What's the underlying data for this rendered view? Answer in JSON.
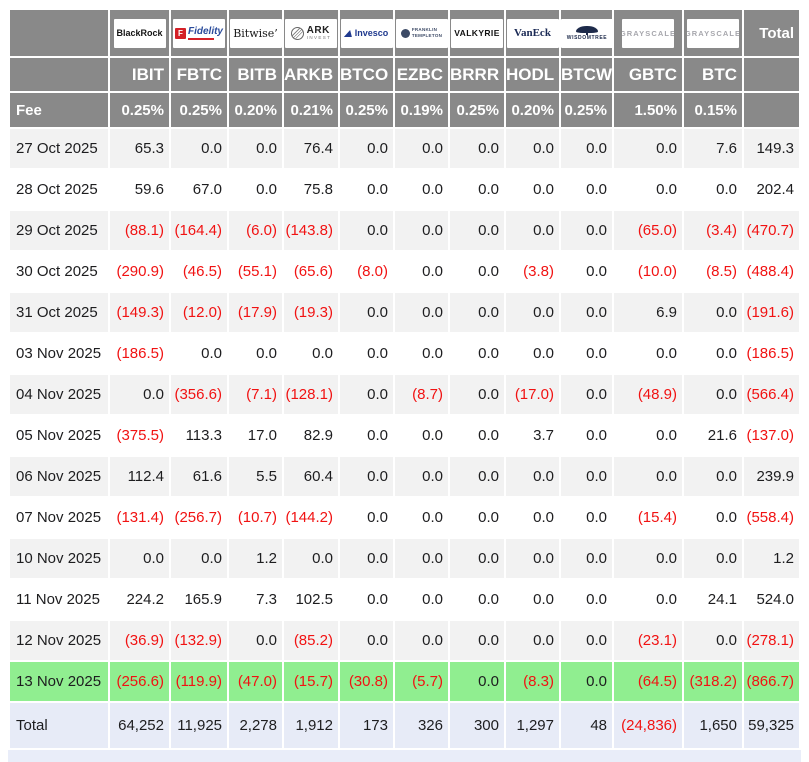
{
  "table": {
    "fee_label": "Fee",
    "total_header": "Total",
    "total_row_label": "Total",
    "columns": [
      {
        "brand": "BlackRock",
        "ticker": "IBIT",
        "fee": "0.25%",
        "logo": {
          "kind": "blackrock",
          "main": "BlackRock"
        }
      },
      {
        "brand": "Fidelity",
        "ticker": "FBTC",
        "fee": "0.25%",
        "logo": {
          "kind": "fidelity",
          "main": "Fidelity",
          "icon": "F"
        }
      },
      {
        "brand": "Bitwise",
        "ticker": "BITB",
        "fee": "0.20%",
        "logo": {
          "kind": "bitwise",
          "main": "Bitwise’"
        }
      },
      {
        "brand": "ARK Invest",
        "ticker": "ARKB",
        "fee": "0.21%",
        "logo": {
          "kind": "ark",
          "main": "ARK",
          "sub": "INVEST"
        }
      },
      {
        "brand": "Invesco",
        "ticker": "BTCO",
        "fee": "0.25%",
        "logo": {
          "kind": "invesco",
          "main": "Invesco"
        }
      },
      {
        "brand": "Franklin Templeton",
        "ticker": "EZBC",
        "fee": "0.19%",
        "logo": {
          "kind": "franklin",
          "main": "FRANKLIN",
          "sub": "TEMPLETON"
        }
      },
      {
        "brand": "Valkyrie",
        "ticker": "BRRR",
        "fee": "0.25%",
        "logo": {
          "kind": "valkyrie",
          "main": "VALKYRIE"
        }
      },
      {
        "brand": "VanEck",
        "ticker": "HODL",
        "fee": "0.20%",
        "logo": {
          "kind": "vaneck",
          "main": "VanEck"
        }
      },
      {
        "brand": "WisdomTree",
        "ticker": "BTCW",
        "fee": "0.25%",
        "logo": {
          "kind": "wisdomtree",
          "main": "WISDOMTREE"
        }
      },
      {
        "brand": "Grayscale",
        "ticker": "GBTC",
        "fee": "1.50%",
        "logo": {
          "kind": "grayscale",
          "main": "GRAYSCALE"
        }
      },
      {
        "brand": "Grayscale",
        "ticker": "BTC",
        "fee": "0.15%",
        "logo": {
          "kind": "grayscale",
          "main": "GRAYSCALE"
        }
      }
    ],
    "rows": [
      {
        "date": "27 Oct 2025",
        "values": [
          "65.3",
          "0.0",
          "0.0",
          "76.4",
          "0.0",
          "0.0",
          "0.0",
          "0.0",
          "0.0",
          "0.0",
          "7.6"
        ],
        "total": "149.3",
        "highlight": false
      },
      {
        "date": "28 Oct 2025",
        "values": [
          "59.6",
          "67.0",
          "0.0",
          "75.8",
          "0.0",
          "0.0",
          "0.0",
          "0.0",
          "0.0",
          "0.0",
          "0.0"
        ],
        "total": "202.4",
        "highlight": false
      },
      {
        "date": "29 Oct 2025",
        "values": [
          "(88.1)",
          "(164.4)",
          "(6.0)",
          "(143.8)",
          "0.0",
          "0.0",
          "0.0",
          "0.0",
          "0.0",
          "(65.0)",
          "(3.4)"
        ],
        "total": "(470.7)",
        "highlight": false
      },
      {
        "date": "30 Oct 2025",
        "values": [
          "(290.9)",
          "(46.5)",
          "(55.1)",
          "(65.6)",
          "(8.0)",
          "0.0",
          "0.0",
          "(3.8)",
          "0.0",
          "(10.0)",
          "(8.5)"
        ],
        "total": "(488.4)",
        "highlight": false
      },
      {
        "date": "31 Oct 2025",
        "values": [
          "(149.3)",
          "(12.0)",
          "(17.9)",
          "(19.3)",
          "0.0",
          "0.0",
          "0.0",
          "0.0",
          "0.0",
          "6.9",
          "0.0"
        ],
        "total": "(191.6)",
        "highlight": false
      },
      {
        "date": "03 Nov 2025",
        "values": [
          "(186.5)",
          "0.0",
          "0.0",
          "0.0",
          "0.0",
          "0.0",
          "0.0",
          "0.0",
          "0.0",
          "0.0",
          "0.0"
        ],
        "total": "(186.5)",
        "highlight": false
      },
      {
        "date": "04 Nov 2025",
        "values": [
          "0.0",
          "(356.6)",
          "(7.1)",
          "(128.1)",
          "0.0",
          "(8.7)",
          "0.0",
          "(17.0)",
          "0.0",
          "(48.9)",
          "0.0"
        ],
        "total": "(566.4)",
        "highlight": false
      },
      {
        "date": "05 Nov 2025",
        "values": [
          "(375.5)",
          "113.3",
          "17.0",
          "82.9",
          "0.0",
          "0.0",
          "0.0",
          "3.7",
          "0.0",
          "0.0",
          "21.6"
        ],
        "total": "(137.0)",
        "highlight": false
      },
      {
        "date": "06 Nov 2025",
        "values": [
          "112.4",
          "61.6",
          "5.5",
          "60.4",
          "0.0",
          "0.0",
          "0.0",
          "0.0",
          "0.0",
          "0.0",
          "0.0"
        ],
        "total": "239.9",
        "highlight": false
      },
      {
        "date": "07 Nov 2025",
        "values": [
          "(131.4)",
          "(256.7)",
          "(10.7)",
          "(144.2)",
          "0.0",
          "0.0",
          "0.0",
          "0.0",
          "0.0",
          "(15.4)",
          "0.0"
        ],
        "total": "(558.4)",
        "highlight": false
      },
      {
        "date": "10 Nov 2025",
        "values": [
          "0.0",
          "0.0",
          "1.2",
          "0.0",
          "0.0",
          "0.0",
          "0.0",
          "0.0",
          "0.0",
          "0.0",
          "0.0"
        ],
        "total": "1.2",
        "highlight": false
      },
      {
        "date": "11 Nov 2025",
        "values": [
          "224.2",
          "165.9",
          "7.3",
          "102.5",
          "0.0",
          "0.0",
          "0.0",
          "0.0",
          "0.0",
          "0.0",
          "24.1"
        ],
        "total": "524.0",
        "highlight": false
      },
      {
        "date": "12 Nov 2025",
        "values": [
          "(36.9)",
          "(132.9)",
          "0.0",
          "(85.2)",
          "0.0",
          "0.0",
          "0.0",
          "0.0",
          "0.0",
          "(23.1)",
          "0.0"
        ],
        "total": "(278.1)",
        "highlight": false
      },
      {
        "date": "13 Nov 2025",
        "values": [
          "(256.6)",
          "(119.9)",
          "(47.0)",
          "(15.7)",
          "(30.8)",
          "(5.7)",
          "0.0",
          "(8.3)",
          "0.0",
          "(64.5)",
          "(318.2)"
        ],
        "total": "(866.7)",
        "highlight": true
      }
    ],
    "total_row": {
      "label": "Total",
      "values": [
        "64,252",
        "11,925",
        "2,278",
        "1,912",
        "173",
        "326",
        "300",
        "1,297",
        "48",
        "(24,836)",
        "1,650"
      ],
      "total": "59,325"
    }
  },
  "colors": {
    "header_bg": "#898989",
    "header_text": "#ffffff",
    "row_alt_bg": "#f2f2f2",
    "highlight_row_bg": "#90ee90",
    "total_row_bg": "#e7ebf7",
    "footer_strip_bg": "#e9edf9",
    "negative_text": "#f11212",
    "positive_text": "#1d1d1f"
  }
}
